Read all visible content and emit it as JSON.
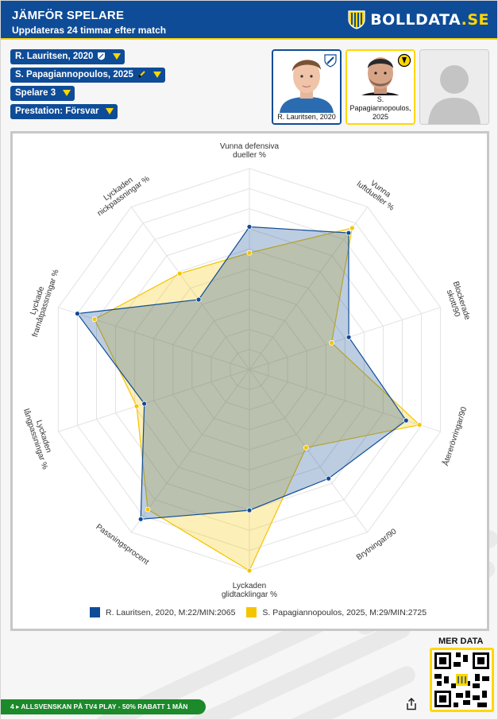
{
  "header": {
    "title": "JÄMFÖR SPELARE",
    "subtitle": "Uppdateras 24 timmar efter match",
    "brand_main": "BOLLDATA",
    "brand_tld": ".SE"
  },
  "selectors": [
    {
      "label": "R. Lauritsen, 2020",
      "club_icon": "ifk-norrkoping-icon"
    },
    {
      "label": "S. Papagiannopoulos, 2025",
      "club_icon": "aik-icon"
    },
    {
      "label": "Spelare 3",
      "club_icon": ""
    },
    {
      "label": "Prestation: Försvar",
      "club_icon": ""
    }
  ],
  "cards": [
    {
      "name": "R. Lauritsen, 2020",
      "border": "#0f4c97"
    },
    {
      "name": "S. Papagiannopoulos, 2025",
      "border": "#ffd700"
    },
    {
      "name": "",
      "border": "#cccccc"
    }
  ],
  "chart_data": {
    "type": "radar",
    "axes": [
      [
        "Vunna defensiva",
        "dueller %"
      ],
      [
        "Vunna",
        "luftdueller %"
      ],
      [
        "Blockerade",
        "skott/90"
      ],
      [
        "Återerövringar/90"
      ],
      [
        "Brytningar/90"
      ],
      [
        "Lyckaden",
        "glidtacklingar %"
      ],
      [
        "Passningsprocent"
      ],
      [
        "Lyckaden",
        "långpassningar %"
      ],
      [
        "Lyckade",
        "framåtpassningar %"
      ],
      [
        "Lyckaden",
        "nickpassningar %"
      ]
    ],
    "scale": {
      "min": 0,
      "max": 10,
      "rings": 10
    },
    "series": [
      {
        "name": "R. Lauritsen, 2020, M:22/MIN:2065",
        "color": "#0f4c97",
        "fill": "rgba(15,76,151,0.28)",
        "values": [
          7.1,
          8.4,
          5.2,
          8.2,
          6.7,
          7.0,
          9.2,
          5.5,
          9.0,
          4.3
        ]
      },
      {
        "name": "S. Papagiannopoulos, 2025, M:29/MIN:2725",
        "color": "#f5c400",
        "fill": "rgba(245,196,0,0.28)",
        "values": [
          5.8,
          8.7,
          4.3,
          8.9,
          4.8,
          10.0,
          8.6,
          5.9,
          8.1,
          5.9
        ]
      }
    ]
  },
  "footer": {
    "mer_data": "MER DATA",
    "promo": "4 ▸  ALLSVENSKAN PÅ TV4 PLAY - 50% RABATT 1 MÅN"
  }
}
